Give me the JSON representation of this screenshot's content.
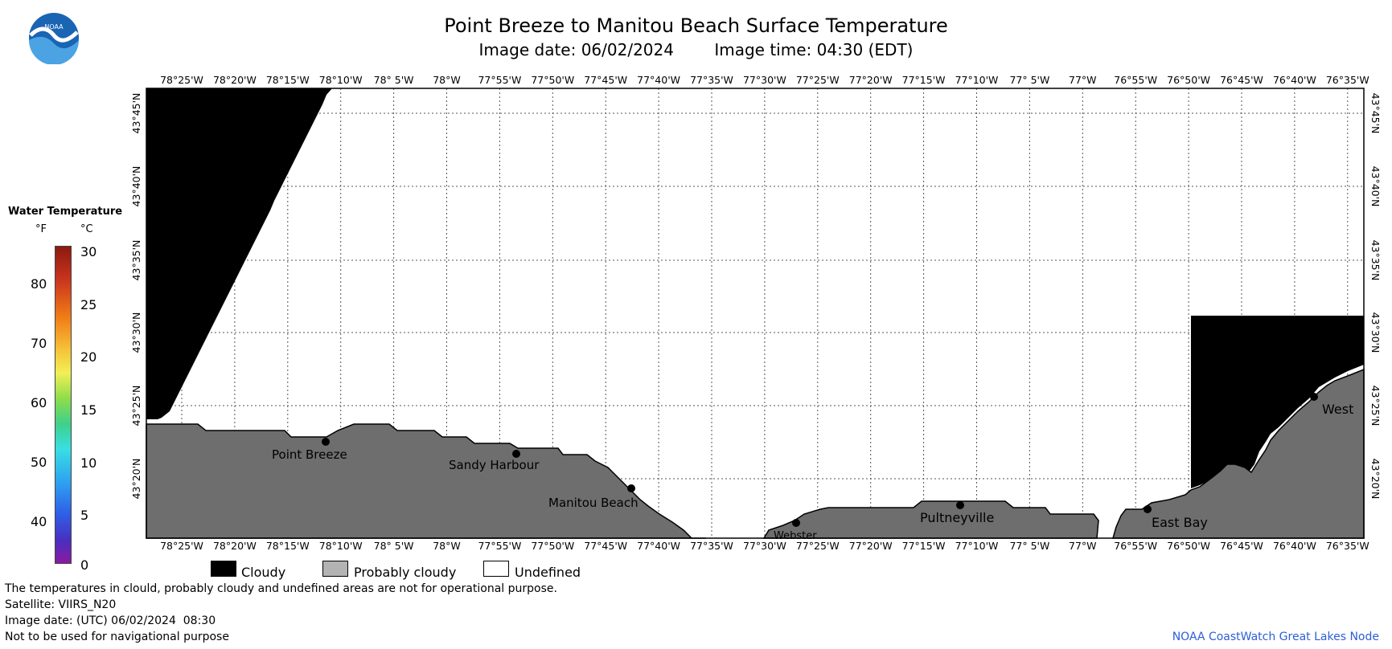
{
  "title": "Point Breeze to Manitou Beach Surface Temperature",
  "image_date": "Image date: 06/02/2024",
  "image_time": "Image time: 04:30 (EDT)",
  "logo_text": "NOAA",
  "colorbar": {
    "title": "Water Temperature",
    "unit_f": "°F",
    "unit_c": "°C",
    "f_ticks": [
      "80",
      "70",
      "60",
      "50",
      "40"
    ],
    "c_ticks": [
      "30",
      "25",
      "20",
      "15",
      "10",
      "5",
      "0"
    ]
  },
  "map": {
    "lon_labels": [
      "78°25'W",
      "78°20'W",
      "78°15'W",
      "78°10'W",
      "78° 5'W",
      "78°W",
      "77°55'W",
      "77°50'W",
      "77°45'W",
      "77°40'W",
      "77°35'W",
      "77°30'W",
      "77°25'W",
      "77°20'W",
      "77°15'W",
      "77°10'W",
      "77° 5'W",
      "77°W",
      "76°55'W",
      "76°50'W",
      "76°45'W",
      "76°40'W",
      "76°35'W"
    ],
    "lat_labels": [
      "43°45'N",
      "43°40'N",
      "43°35'N",
      "43°30'N",
      "43°25'N",
      "43°20'N"
    ],
    "places": [
      "Point Breeze",
      "Sandy Harbour",
      "Manitou Beach",
      "Webster",
      "Pultneyville",
      "East Bay",
      "West"
    ],
    "colors": {
      "cloudy": "#000000",
      "probably_cloudy": "#6e6e6e",
      "undefined": "#ffffff"
    }
  },
  "legend": {
    "cloudy": "Cloudy",
    "probably_cloudy": "Probably cloudy",
    "undefined": "Undefined"
  },
  "notes": {
    "disclaimer": "The temperatures in clould, probably cloudy and undefined areas are not for operational purpose.",
    "satellite": "Satellite: VIIRS_N20",
    "utc_date": "Image date: (UTC) 06/02/2024  08:30",
    "navigation": "Not to be used for navigational purpose"
  },
  "credit": "NOAA CoastWatch Great Lakes Node"
}
